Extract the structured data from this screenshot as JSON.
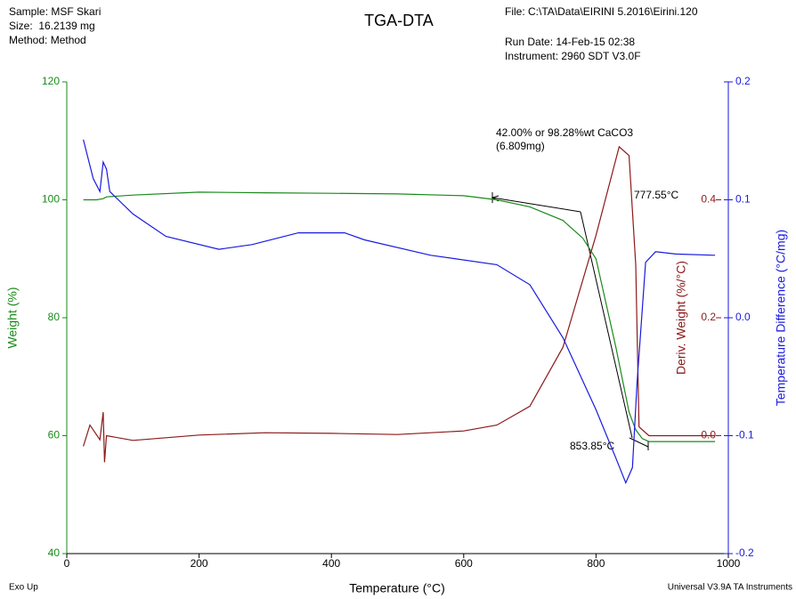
{
  "chart_data": {
    "type": "line",
    "title": "TGA-DTA",
    "header_left": [
      "Sample: MSF Skari",
      "Size:  16.2139 mg",
      "Method: Method"
    ],
    "header_right": [
      "File: C:\\TA\\Data\\EIRINI 5.2016\\Eirini.120",
      "Run Date: 14-Feb-15 02:38",
      "Instrument: 2960 SDT V3.0F"
    ],
    "x_label": "Temperature (°C)",
    "y_label": "Weight (%)",
    "y2_label": "Deriv. Weight (%/°C)",
    "y3_label": "Temperature Difference (°C/mg)",
    "footer_left": "Exo Up",
    "footer_right": "Universal V3.9A TA Instruments",
    "annotations": [
      "42.00% or 98.28%wt CaCO3",
      "(6.809mg)",
      "777.55°C",
      "853.85°C"
    ],
    "xlim": [
      0,
      1000
    ],
    "xticks": [
      0,
      200,
      400,
      600,
      800,
      1000
    ],
    "ylim": [
      40,
      120
    ],
    "yticks": [
      40,
      60,
      80,
      100,
      120
    ],
    "y2lim": [
      -0.2,
      0.6
    ],
    "y2ticks": [
      {
        "value": 0,
        "label": "0.0"
      },
      0.2,
      0.4
    ],
    "y3lim": [
      -0.2,
      0.2
    ],
    "y3ticks": [
      -0.2,
      -0.1,
      {
        "value": 0,
        "label": "0.0"
      },
      0.1,
      0.2
    ],
    "series": [
      {
        "name": "Weight",
        "color": "#1a8a1a",
        "axis": "y",
        "x": [
          25,
          45,
          55,
          60,
          100,
          200,
          300,
          400,
          500,
          600,
          650,
          700,
          750,
          780,
          800,
          830,
          850,
          860,
          870,
          880,
          980
        ],
        "values": [
          100,
          100,
          100.2,
          100.5,
          100.8,
          101.3,
          101.2,
          101.1,
          101,
          100.7,
          100,
          98.8,
          96.5,
          93.5,
          90,
          75,
          64,
          61,
          59.5,
          59,
          59
        ]
      },
      {
        "name": "Deriv. Weight",
        "color": "#8b1a1a",
        "axis": "y2",
        "x": [
          25,
          35,
          50,
          55,
          57,
          60,
          100,
          200,
          300,
          400,
          500,
          600,
          650,
          700,
          750,
          800,
          835,
          850,
          860,
          865,
          880,
          980
        ],
        "values": [
          -0.018,
          0.018,
          -0.007,
          0.04,
          -0.045,
          0,
          -0.008,
          0.001,
          0.005,
          0.004,
          0.002,
          0.008,
          0.018,
          0.05,
          0.15,
          0.34,
          0.49,
          0.475,
          0.29,
          0.015,
          0,
          0
        ]
      },
      {
        "name": "Temperature Difference",
        "color": "#1a1ae0",
        "axis": "y3",
        "x": [
          25,
          40,
          50,
          55,
          60,
          65,
          100,
          150,
          230,
          280,
          350,
          420,
          450,
          550,
          650,
          700,
          750,
          800,
          830,
          845,
          855,
          862,
          875,
          890,
          920,
          980
        ],
        "values": [
          0.151,
          0.118,
          0.107,
          0.132,
          0.126,
          0.107,
          0.088,
          0.069,
          0.058,
          0.062,
          0.072,
          0.072,
          0.066,
          0.053,
          0.045,
          0.028,
          -0.017,
          -0.078,
          -0.119,
          -0.14,
          -0.127,
          -0.055,
          0.047,
          0.056,
          0.054,
          0.053
        ]
      }
    ]
  }
}
